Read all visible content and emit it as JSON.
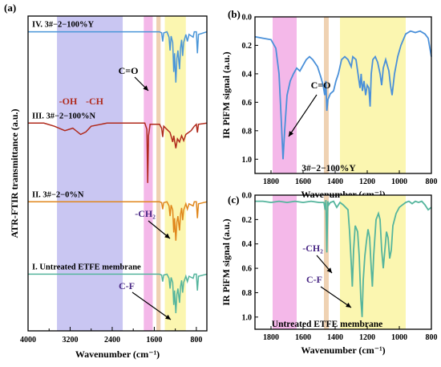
{
  "colors": {
    "blue_band": "#c9c6f2",
    "pink_band": "#f4b8e9",
    "tan_band": "#efd2b3",
    "yellow_band": "#fbf6b0",
    "curve_I": "#55b59d",
    "curve_II": "#e0871c",
    "curve_III": "#b02a1c",
    "curve_IV": "#4a96d8",
    "curve_b": "#4a90d9",
    "curve_c": "#55b59d",
    "annotation": "#4b2a86"
  },
  "chart_data": [
    {
      "panel": "(a)",
      "type": "line",
      "xlabel": "Wavenumber (cm⁻¹)",
      "ylabel": "ATR-FTIR transmittance (a.u.)",
      "xlim": [
        4000,
        600
      ],
      "x_reversed": true,
      "xticks": [
        4000,
        3200,
        2400,
        1600,
        800
      ],
      "y_tick_labels": false,
      "bands_cm1": [
        [
          3450,
          2200
        ],
        [
          1800,
          1630
        ],
        [
          1560,
          1480
        ],
        [
          1400,
          1000
        ]
      ],
      "series": [
        {
          "name": "I. Untreated ETFE membrane",
          "offset": 0.82,
          "points": [
            [
              4000,
              0
            ],
            [
              1500,
              0
            ],
            [
              1460,
              -0.02
            ],
            [
              1440,
              -0.18
            ],
            [
              1420,
              -0.02
            ],
            [
              1360,
              0
            ],
            [
              1320,
              -0.1
            ],
            [
              1300,
              -0.35
            ],
            [
              1280,
              -0.08
            ],
            [
              1250,
              -0.2
            ],
            [
              1230,
              -0.75
            ],
            [
              1215,
              -0.4
            ],
            [
              1190,
              -0.95
            ],
            [
              1170,
              -0.5
            ],
            [
              1150,
              -0.35
            ],
            [
              1120,
              -0.7
            ],
            [
              1100,
              -0.3
            ],
            [
              1080,
              -0.15
            ],
            [
              1060,
              -0.45
            ],
            [
              1040,
              -0.2
            ],
            [
              1000,
              -0.05
            ],
            [
              970,
              -0.18
            ],
            [
              940,
              -0.05
            ],
            [
              860,
              -0.1
            ],
            [
              840,
              0
            ],
            [
              800,
              0
            ],
            [
              780,
              -0.4
            ],
            [
              760,
              -0.05
            ],
            [
              600,
              0
            ]
          ]
        },
        {
          "name": "II. 3#−2−0%N",
          "offset": 0.59,
          "points": [
            [
              4000,
              0
            ],
            [
              1500,
              0
            ],
            [
              1460,
              -0.02
            ],
            [
              1440,
              -0.18
            ],
            [
              1420,
              -0.02
            ],
            [
              1360,
              0
            ],
            [
              1320,
              -0.1
            ],
            [
              1300,
              -0.35
            ],
            [
              1280,
              -0.08
            ],
            [
              1250,
              -0.2
            ],
            [
              1230,
              -0.75
            ],
            [
              1215,
              -0.4
            ],
            [
              1190,
              -0.95
            ],
            [
              1170,
              -0.5
            ],
            [
              1150,
              -0.35
            ],
            [
              1120,
              -0.7
            ],
            [
              1100,
              -0.3
            ],
            [
              1080,
              -0.15
            ],
            [
              1060,
              -0.45
            ],
            [
              1040,
              -0.2
            ],
            [
              1000,
              -0.05
            ],
            [
              970,
              -0.18
            ],
            [
              940,
              -0.05
            ],
            [
              860,
              -0.1
            ],
            [
              840,
              0
            ],
            [
              800,
              0
            ],
            [
              780,
              -0.4
            ],
            [
              760,
              -0.05
            ],
            [
              600,
              0
            ]
          ]
        },
        {
          "name": "III. 3#−2−100%N",
          "offset": 0.34,
          "points": [
            [
              4000,
              0
            ],
            [
              3700,
              0
            ],
            [
              3500,
              -0.05
            ],
            [
              3300,
              -0.12
            ],
            [
              3150,
              -0.08
            ],
            [
              3000,
              -0.18
            ],
            [
              2900,
              -0.14
            ],
            [
              2800,
              -0.05
            ],
            [
              2500,
              0
            ],
            [
              1780,
              0
            ],
            [
              1740,
              -0.1
            ],
            [
              1725,
              -0.95
            ],
            [
              1710,
              -0.2
            ],
            [
              1680,
              -0.02
            ],
            [
              1500,
              -0.02
            ],
            [
              1460,
              -0.08
            ],
            [
              1440,
              -0.22
            ],
            [
              1420,
              -0.05
            ],
            [
              1300,
              -0.15
            ],
            [
              1250,
              -0.3
            ],
            [
              1230,
              -0.2
            ],
            [
              1190,
              -0.4
            ],
            [
              1160,
              -0.25
            ],
            [
              1120,
              -0.3
            ],
            [
              1080,
              -0.2
            ],
            [
              1040,
              -0.28
            ],
            [
              1000,
              -0.18
            ],
            [
              900,
              -0.12
            ],
            [
              840,
              -0.05
            ],
            [
              800,
              -0.02
            ],
            [
              780,
              -0.15
            ],
            [
              760,
              -0.02
            ],
            [
              600,
              0
            ]
          ]
        },
        {
          "name": "IV. 3#−2−100%Y",
          "offset": 0.05,
          "points": [
            [
              4000,
              0
            ],
            [
              1500,
              0
            ],
            [
              1460,
              -0.02
            ],
            [
              1440,
              -0.18
            ],
            [
              1420,
              -0.02
            ],
            [
              1360,
              0
            ],
            [
              1320,
              -0.1
            ],
            [
              1300,
              -0.35
            ],
            [
              1280,
              -0.08
            ],
            [
              1250,
              -0.2
            ],
            [
              1230,
              -0.75
            ],
            [
              1215,
              -0.4
            ],
            [
              1190,
              -0.95
            ],
            [
              1170,
              -0.5
            ],
            [
              1150,
              -0.35
            ],
            [
              1120,
              -0.7
            ],
            [
              1100,
              -0.3
            ],
            [
              1080,
              -0.15
            ],
            [
              1060,
              -0.45
            ],
            [
              1040,
              -0.2
            ],
            [
              1000,
              -0.05
            ],
            [
              970,
              -0.18
            ],
            [
              940,
              -0.05
            ],
            [
              860,
              -0.1
            ],
            [
              840,
              0
            ],
            [
              800,
              0
            ],
            [
              780,
              -0.4
            ],
            [
              760,
              -0.05
            ],
            [
              600,
              0
            ]
          ]
        }
      ],
      "annotations": [
        "-OH",
        "-CH",
        "C=O",
        "-CH₂",
        "C-F"
      ]
    },
    {
      "panel": "(b)",
      "type": "line",
      "title": "3#−2−100%Y",
      "xlabel": "Wavenumber (cm⁻¹)",
      "ylabel": "IR PiFM signal (a.u.)",
      "xlim": [
        1900,
        800
      ],
      "ylim": [
        1.1,
        0.0
      ],
      "x_reversed": true,
      "y_reversed": true,
      "xticks": [
        1800,
        1600,
        1400,
        1200,
        1000,
        800
      ],
      "yticks": [
        0.0,
        0.2,
        0.4,
        0.6,
        0.8,
        1.0
      ],
      "bands_cm1": [
        [
          1790,
          1640
        ],
        [
          1470,
          1440
        ],
        [
          1370,
          960
        ]
      ],
      "series": [
        {
          "points": [
            [
              1900,
              0.14
            ],
            [
              1850,
              0.15
            ],
            [
              1800,
              0.16
            ],
            [
              1770,
              0.22
            ],
            [
              1750,
              0.4
            ],
            [
              1735,
              0.75
            ],
            [
              1725,
              1.0
            ],
            [
              1715,
              0.8
            ],
            [
              1700,
              0.55
            ],
            [
              1680,
              0.45
            ],
            [
              1660,
              0.4
            ],
            [
              1640,
              0.36
            ],
            [
              1620,
              0.38
            ],
            [
              1600,
              0.34
            ],
            [
              1580,
              0.3
            ],
            [
              1560,
              0.28
            ],
            [
              1540,
              0.3
            ],
            [
              1510,
              0.35
            ],
            [
              1490,
              0.42
            ],
            [
              1475,
              0.48
            ],
            [
              1465,
              0.55
            ],
            [
              1458,
              0.45
            ],
            [
              1452,
              0.66
            ],
            [
              1445,
              0.58
            ],
            [
              1430,
              0.54
            ],
            [
              1410,
              0.52
            ],
            [
              1395,
              0.45
            ],
            [
              1380,
              0.4
            ],
            [
              1360,
              0.3
            ],
            [
              1340,
              0.28
            ],
            [
              1320,
              0.3
            ],
            [
              1300,
              0.35
            ],
            [
              1290,
              0.28
            ],
            [
              1270,
              0.3
            ],
            [
              1255,
              0.42
            ],
            [
              1245,
              0.5
            ],
            [
              1238,
              0.4
            ],
            [
              1230,
              0.52
            ],
            [
              1220,
              0.45
            ],
            [
              1210,
              0.55
            ],
            [
              1200,
              0.48
            ],
            [
              1190,
              0.5
            ],
            [
              1182,
              0.63
            ],
            [
              1175,
              0.4
            ],
            [
              1165,
              0.3
            ],
            [
              1150,
              0.28
            ],
            [
              1135,
              0.32
            ],
            [
              1120,
              0.4
            ],
            [
              1110,
              0.48
            ],
            [
              1100,
              0.36
            ],
            [
              1085,
              0.3
            ],
            [
              1065,
              0.38
            ],
            [
              1055,
              0.48
            ],
            [
              1045,
              0.55
            ],
            [
              1030,
              0.4
            ],
            [
              1010,
              0.28
            ],
            [
              990,
              0.2
            ],
            [
              960,
              0.12
            ],
            [
              930,
              0.1
            ],
            [
              900,
              0.11
            ],
            [
              870,
              0.1
            ],
            [
              840,
              0.12
            ],
            [
              820,
              0.15
            ],
            [
              800,
              0.28
            ]
          ]
        }
      ],
      "annotations": [
        "C=O"
      ]
    },
    {
      "panel": "(c)",
      "type": "line",
      "title": "Untreated ETFE membrane",
      "xlabel": "Wavenumber (cm⁻¹)",
      "ylabel": "IR PiFM signal (a.u.)",
      "xlim": [
        1900,
        800
      ],
      "ylim": [
        1.1,
        0.0
      ],
      "x_reversed": true,
      "y_reversed": true,
      "xticks": [
        1800,
        1600,
        1400,
        1200,
        1000,
        800
      ],
      "yticks": [
        0.0,
        0.2,
        0.4,
        0.6,
        0.8,
        1.0
      ],
      "bands_cm1": [
        [
          1790,
          1640
        ],
        [
          1470,
          1440
        ],
        [
          1370,
          960
        ]
      ],
      "series": [
        {
          "points": [
            [
              1900,
              0.05
            ],
            [
              1850,
              0.05
            ],
            [
              1800,
              0.06
            ],
            [
              1750,
              0.05
            ],
            [
              1700,
              0.06
            ],
            [
              1650,
              0.05
            ],
            [
              1600,
              0.06
            ],
            [
              1550,
              0.05
            ],
            [
              1500,
              0.06
            ],
            [
              1470,
              0.06
            ],
            [
              1462,
              0.12
            ],
            [
              1458,
              0.04
            ],
            [
              1452,
              0.47
            ],
            [
              1446,
              0.05
            ],
            [
              1440,
              0.08
            ],
            [
              1430,
              0.06
            ],
            [
              1410,
              0.05
            ],
            [
              1390,
              0.1
            ],
            [
              1370,
              0.06
            ],
            [
              1350,
              0.08
            ],
            [
              1320,
              0.12
            ],
            [
              1310,
              0.3
            ],
            [
              1300,
              0.55
            ],
            [
              1293,
              0.75
            ],
            [
              1285,
              0.45
            ],
            [
              1275,
              0.25
            ],
            [
              1260,
              0.3
            ],
            [
              1250,
              0.5
            ],
            [
              1240,
              0.85
            ],
            [
              1232,
              1.0
            ],
            [
              1225,
              0.7
            ],
            [
              1215,
              0.5
            ],
            [
              1205,
              0.38
            ],
            [
              1195,
              0.28
            ],
            [
              1185,
              0.35
            ],
            [
              1175,
              0.6
            ],
            [
              1168,
              0.75
            ],
            [
              1160,
              0.5
            ],
            [
              1145,
              0.2
            ],
            [
              1130,
              0.15
            ],
            [
              1120,
              0.2
            ],
            [
              1110,
              0.45
            ],
            [
              1100,
              0.6
            ],
            [
              1090,
              0.45
            ],
            [
              1080,
              0.3
            ],
            [
              1070,
              0.35
            ],
            [
              1060,
              0.52
            ],
            [
              1050,
              0.45
            ],
            [
              1040,
              0.25
            ],
            [
              1020,
              0.15
            ],
            [
              1000,
              0.1
            ],
            [
              980,
              0.08
            ],
            [
              960,
              0.06
            ],
            [
              940,
              0.05
            ],
            [
              920,
              0.07
            ],
            [
              900,
              0.05
            ],
            [
              880,
              0.06
            ],
            [
              860,
              0.05
            ],
            [
              840,
              0.08
            ],
            [
              820,
              0.12
            ],
            [
              800,
              0.1
            ]
          ]
        }
      ],
      "annotations": [
        "-CH₂",
        "C-F"
      ]
    }
  ]
}
